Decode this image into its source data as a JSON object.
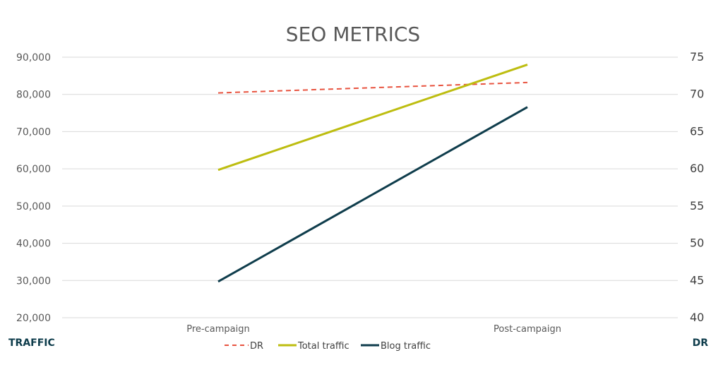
{
  "colors": {
    "dr": "#e8533f",
    "total_traffic": "#bdbd10",
    "blog_traffic": "#0f3d4c"
  },
  "chart_data": {
    "type": "line",
    "title": "SEO METRICS",
    "categories": [
      "Pre-campaign",
      "Post-campaign"
    ],
    "left_axis": {
      "label": "TRAFFIC",
      "ylim": [
        20000,
        90000
      ],
      "ticks": [
        "20,000",
        "30,000",
        "40,000",
        "50,000",
        "60,000",
        "70,000",
        "80,000",
        "90,000"
      ],
      "tick_values": [
        20000,
        30000,
        40000,
        50000,
        60000,
        70000,
        80000,
        90000
      ]
    },
    "right_axis": {
      "label": "DR",
      "ylim": [
        40,
        75
      ],
      "ticks": [
        "40",
        "45",
        "50",
        "55",
        "60",
        "65",
        "70",
        "75"
      ],
      "tick_values": [
        40,
        45,
        50,
        55,
        60,
        65,
        70,
        75
      ]
    },
    "series": [
      {
        "name": "DR",
        "axis": "right",
        "style": "dashed",
        "color_key": "dr",
        "values": [
          70.2,
          71.6
        ]
      },
      {
        "name": "Total traffic",
        "axis": "left",
        "style": "solid",
        "color_key": "total_traffic",
        "values": [
          59700,
          88000
        ]
      },
      {
        "name": "Blog traffic",
        "axis": "left",
        "style": "solid",
        "color_key": "blog_traffic",
        "values": [
          29700,
          76600
        ]
      }
    ],
    "grid": true,
    "legend": "bottom"
  }
}
